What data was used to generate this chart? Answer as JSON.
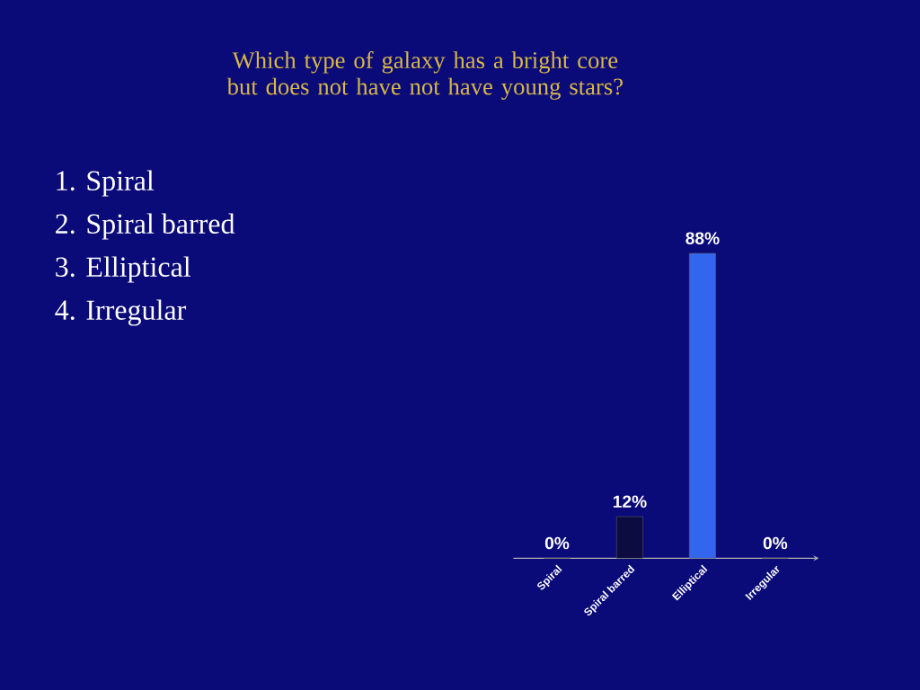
{
  "chart_data": {
    "type": "bar",
    "title": "Which type of galaxy has a bright core but does not have not have young stars?",
    "categories": [
      "Spiral",
      "Spiral barred",
      "Elliptical",
      "Irregular"
    ],
    "values": [
      0,
      12,
      88,
      0
    ],
    "value_labels": [
      "0%",
      "12%",
      "88%",
      "0%"
    ],
    "colors": [
      "#d08a10",
      "#0c0c40",
      "#3366ee",
      "#d0d010"
    ],
    "annotations": [
      "1.  Spiral",
      "2.  Spiral barred",
      "3.  Elliptical",
      "4.  Irregular"
    ]
  }
}
